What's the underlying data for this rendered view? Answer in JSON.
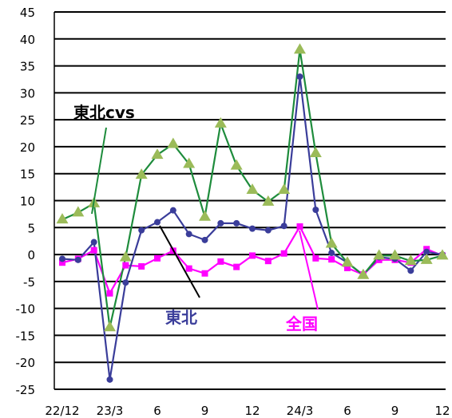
{
  "chart_data": {
    "type": "line",
    "title": "",
    "xlabel": "",
    "ylabel": "",
    "ylim": [
      -25,
      45
    ],
    "yticks": [
      45,
      40,
      35,
      30,
      25,
      20,
      15,
      10,
      5,
      0,
      -5,
      -10,
      -15,
      -20,
      -25
    ],
    "x_tick_labels": [
      {
        "index": 0,
        "label": "22/12"
      },
      {
        "index": 3,
        "label": "23/3"
      },
      {
        "index": 6,
        "label": "6"
      },
      {
        "index": 9,
        "label": "9"
      },
      {
        "index": 12,
        "label": "12"
      },
      {
        "index": 15,
        "label": "24/3"
      },
      {
        "index": 18,
        "label": "6"
      },
      {
        "index": 21,
        "label": "9"
      },
      {
        "index": 24,
        "label": "12"
      }
    ],
    "grid": {
      "horizontal": true,
      "vertical": false
    },
    "series": [
      {
        "name": "東北cvs",
        "color": "#1e8c3c",
        "marker": "triangle",
        "marker_color": "#9bbb59",
        "values": [
          6.5,
          7.8,
          9.5,
          -13.5,
          -0.5,
          14.8,
          18.5,
          20.5,
          16.8,
          7,
          24.3,
          16.5,
          12,
          9.8,
          12,
          38,
          18.8,
          2,
          -1.5,
          -3.8,
          -0.2,
          -0.2,
          -1.2,
          -1,
          -0.2
        ]
      },
      {
        "name": "東北",
        "color": "#3a3d9a",
        "marker": "circle",
        "marker_color": "#3a3d9a",
        "values": [
          -0.8,
          -1,
          2.3,
          -23.2,
          -5.2,
          4.5,
          6,
          8.2,
          3.8,
          2.7,
          5.8,
          5.8,
          4.8,
          4.5,
          5.3,
          33,
          8.3,
          0.3,
          -1.5,
          -3.8,
          -0.5,
          -0.8,
          -3,
          0.5,
          0
        ]
      },
      {
        "name": "全国",
        "color": "#ff00ff",
        "marker": "square",
        "marker_color": "#ff00ff",
        "values": [
          -1.5,
          -0.8,
          0.8,
          -7.2,
          -2,
          -2.2,
          -0.7,
          0.7,
          -2.6,
          -3.5,
          -1.3,
          -2.3,
          -0.2,
          -1.2,
          0.2,
          5.2,
          -0.7,
          -0.9,
          -2.5,
          -3.7,
          -1,
          -1,
          -1.5,
          1,
          -0.2
        ]
      }
    ],
    "annotations": {
      "tohoku_cvs": "東北cvs",
      "tohoku": "東北",
      "zenkoku": "全国"
    }
  }
}
